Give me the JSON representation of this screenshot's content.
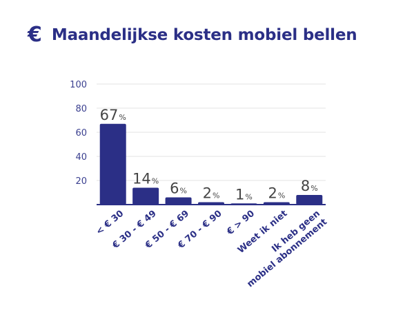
{
  "header": {
    "icon": "euro-icon",
    "icon_glyph": "€",
    "title": "Maandelijkse kosten mobiel bellen"
  },
  "colors": {
    "bar": "#2b2f86",
    "title": "#2b2f86",
    "ticks": "#3a3f8f",
    "value_text": "#444444",
    "axis": "#2b2f86",
    "grid": "#e3e3e3"
  },
  "chart_data": {
    "type": "bar",
    "unit": "%",
    "categories": [
      "< € 30",
      "€ 30 - € 49",
      "€ 50 - € 69",
      "€ 70 - € 90",
      "€ > 90",
      "Weet ik niet",
      "Ik heb geen mobiel abonnement"
    ],
    "category_lines": [
      [
        "< € 30"
      ],
      [
        "€ 30 - € 49"
      ],
      [
        "€ 50 - € 69"
      ],
      [
        "€ 70 - € 90"
      ],
      [
        "€ > 90"
      ],
      [
        "Weet ik niet"
      ],
      [
        "Ik heb geen",
        "mobiel abonnement"
      ]
    ],
    "values": [
      67,
      14,
      6,
      2,
      1,
      2,
      8
    ],
    "ylim": [
      0,
      100
    ],
    "yticks": [
      20,
      40,
      60,
      80,
      100
    ],
    "grid": true,
    "legend": "none"
  }
}
